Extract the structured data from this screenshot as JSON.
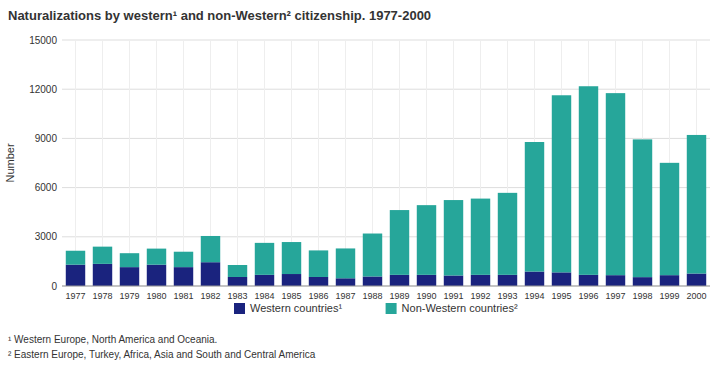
{
  "chart_data": {
    "type": "bar",
    "stacked": true,
    "title": "Naturalizations by western¹ and non-Western² citizenship. 1977-2000",
    "y_label": "Number",
    "categories": [
      "1977",
      "1978",
      "1979",
      "1980",
      "1981",
      "1982",
      "1983",
      "1984",
      "1985",
      "1986",
      "1987",
      "1988",
      "1989",
      "1990",
      "1991",
      "1992",
      "1993",
      "1994",
      "1995",
      "1996",
      "1997",
      "1998",
      "1999",
      "2000"
    ],
    "series": [
      {
        "name": "Western countries¹",
        "color": "#1a237e",
        "values": [
          1300,
          1350,
          1150,
          1300,
          1150,
          1450,
          550,
          680,
          730,
          550,
          470,
          580,
          680,
          680,
          640,
          680,
          680,
          880,
          830,
          680,
          660,
          540,
          660,
          760
        ]
      },
      {
        "name": "Non-Western countries²",
        "color": "#26a69a",
        "values": [
          850,
          1050,
          850,
          980,
          940,
          1600,
          730,
          1950,
          1950,
          1620,
          1820,
          2620,
          3950,
          4250,
          4600,
          4650,
          5000,
          7900,
          10800,
          11500,
          11100,
          8400,
          6850,
          8450
        ]
      }
    ],
    "ylim": [
      0,
      15000
    ],
    "yticks": [
      0,
      3000,
      6000,
      9000,
      12000,
      15000
    ],
    "grid": true,
    "legend": "bottom",
    "annotations": [
      "¹ Western Europe, North America and Oceania.",
      "² Eastern Europe, Turkey, Africa, Asia and South and Central America"
    ]
  }
}
